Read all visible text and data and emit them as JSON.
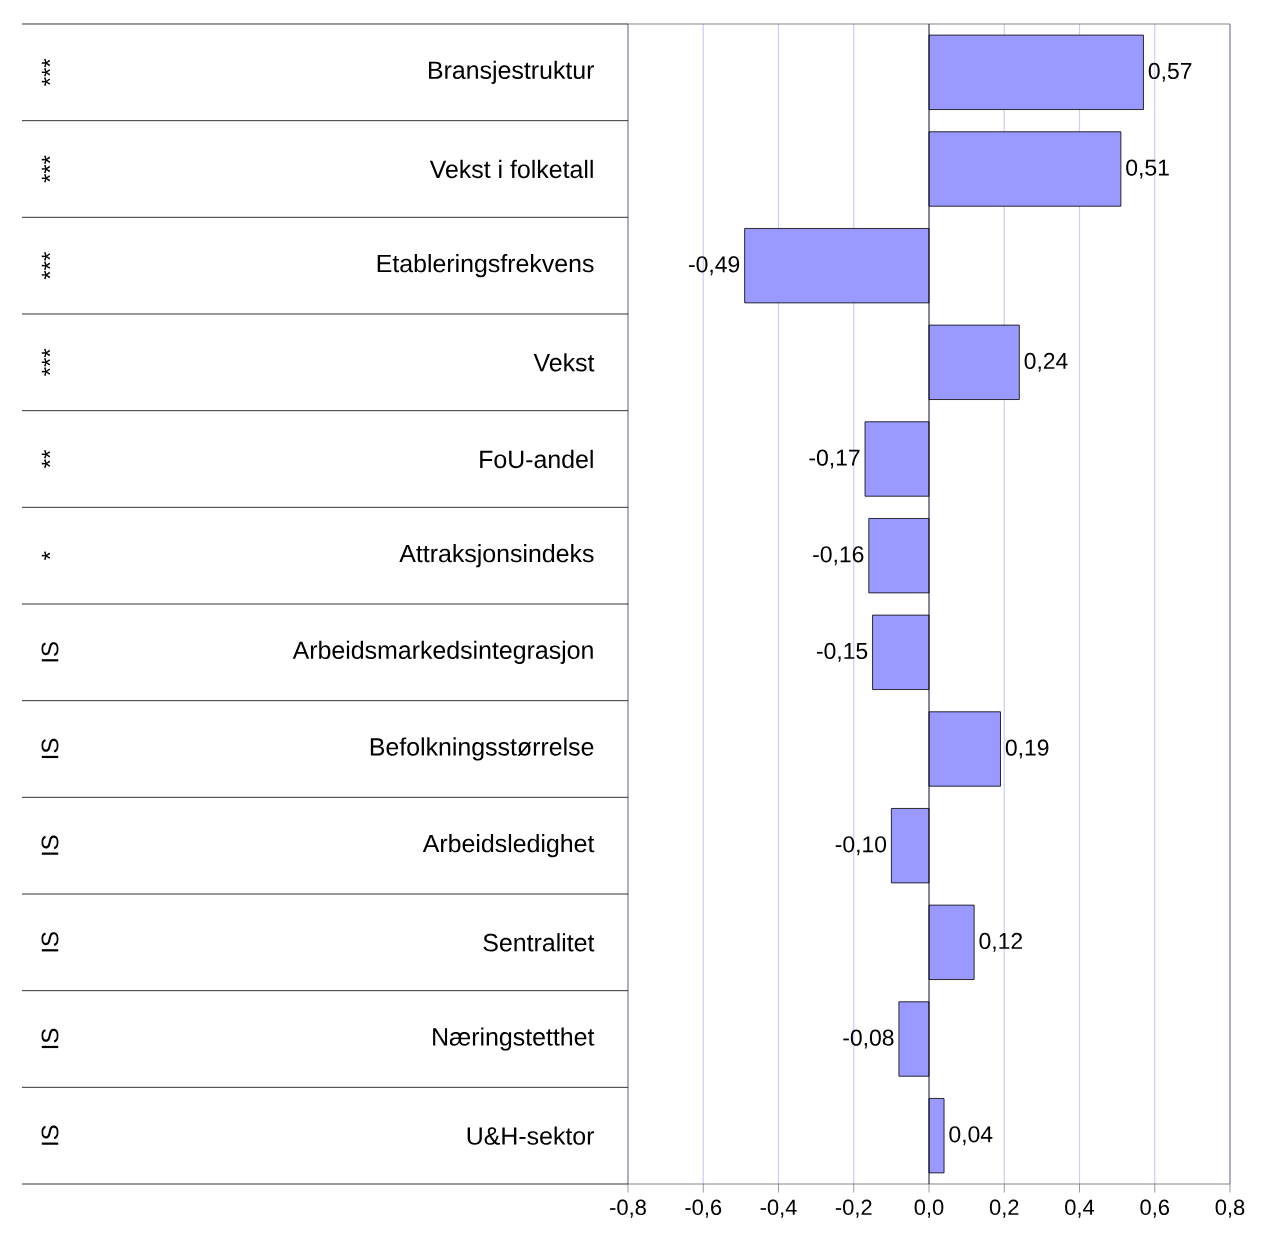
{
  "chart_data": {
    "type": "bar",
    "orientation": "horizontal",
    "categories": [
      "Bransjestruktur",
      "Vekst i folketall",
      "Etableringsfrekvens",
      "Vekst",
      "FoU-andel",
      "Attraksjonsindeks",
      "Arbeidsmarkedsintegrasjon",
      "Befolkningsstørrelse",
      "Arbeidsledighet",
      "Sentralitet",
      "Næringstetthet",
      "U&H-sektor"
    ],
    "values": [
      0.57,
      0.51,
      -0.49,
      0.24,
      -0.17,
      -0.16,
      -0.15,
      0.19,
      -0.1,
      0.12,
      -0.08,
      0.04
    ],
    "value_labels": [
      "0,57",
      "0,51",
      "-0,49",
      "0,24",
      "-0,17",
      "-0,16",
      "-0,15",
      "0,19",
      "-0,10",
      "0,12",
      "-0,08",
      "0,04"
    ],
    "color": "#9999ff",
    "xlim": [
      -0.8,
      0.8
    ],
    "xticks": [
      {
        "value": -0.8,
        "label": "-0,8"
      },
      {
        "value": -0.6,
        "label": "-0,6"
      },
      {
        "value": -0.4,
        "label": "-0,4"
      },
      {
        "value": -0.2,
        "label": "-0,2"
      },
      {
        "value": 0.0,
        "label": "0,0"
      },
      {
        "value": 0.2,
        "label": "0,2"
      },
      {
        "value": 0.4,
        "label": "0,4"
      },
      {
        "value": 0.6,
        "label": "0,6"
      },
      {
        "value": 0.8,
        "label": "0,8"
      }
    ],
    "grid": "x",
    "annotations": [
      "***",
      "***",
      "***",
      "***",
      "**",
      "*",
      "IS",
      "IS",
      "IS",
      "IS",
      "IS",
      "IS"
    ]
  }
}
